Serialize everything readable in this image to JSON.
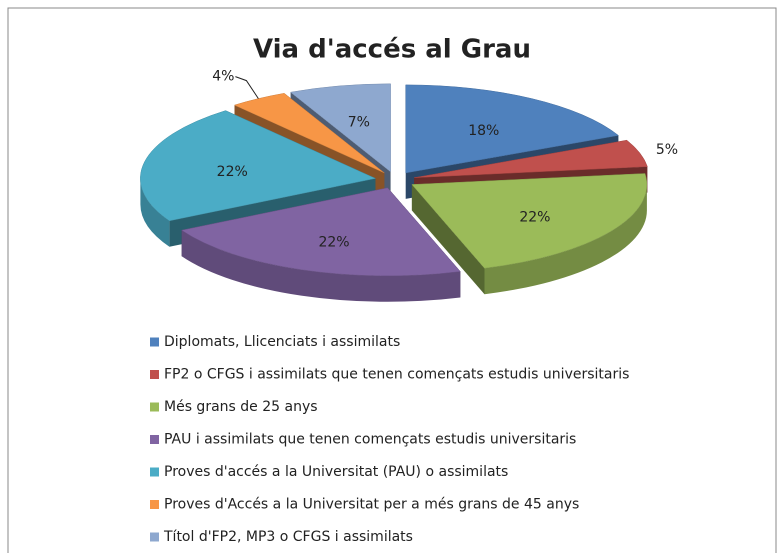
{
  "chart_data": {
    "type": "pie",
    "title": "Via d'accés al Grau",
    "categories": [
      "Diplomats, Llicenciats i assimilats",
      "FP2 o CFGS i assimilats que tenen començats estudis universitaris",
      "Més grans de 25 anys",
      "PAU i assimilats que tenen començats estudis universitaris",
      "Proves d'accés a la Universitat (PAU) o assimilats",
      "Proves d'Accés a la Universitat per a més grans de 45 anys",
      "Títol d'FP2, MP3 o CFGS i assimilats"
    ],
    "values": [
      18,
      5,
      22,
      22,
      22,
      4,
      7
    ],
    "value_labels": [
      "18%",
      "5%",
      "22%",
      "22%",
      "22%",
      "4%",
      "7%"
    ],
    "colors": [
      "#4f81bd",
      "#c0504d",
      "#9bbb59",
      "#8064a2",
      "#4bacc6",
      "#f79646",
      "#8ea8cf"
    ],
    "legend": "bottom"
  }
}
